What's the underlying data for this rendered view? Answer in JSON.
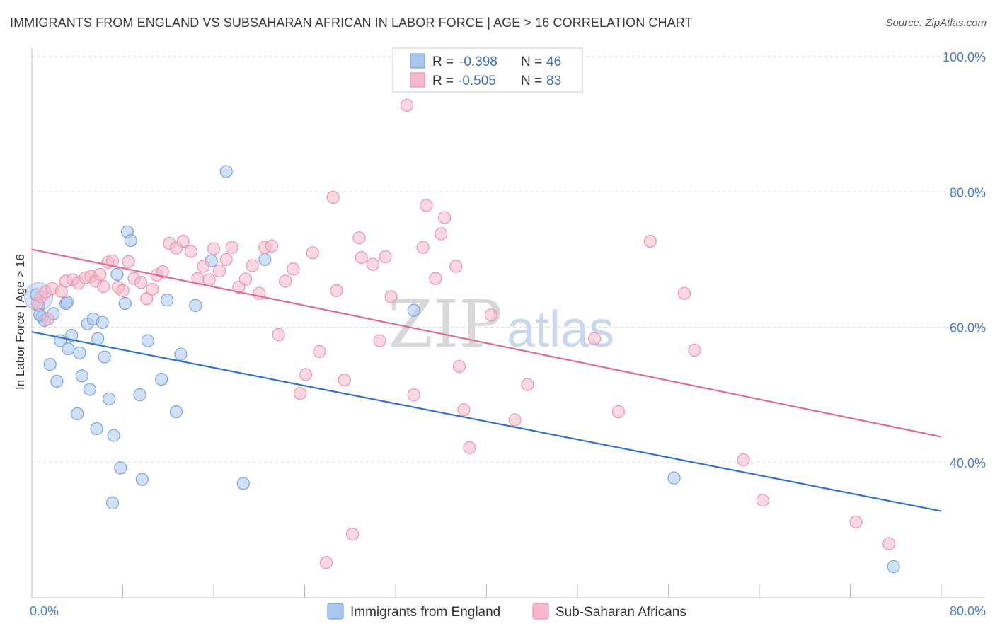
{
  "title": "IMMIGRANTS FROM ENGLAND VS SUBSAHARAN AFRICAN IN LABOR FORCE | AGE > 16 CORRELATION CHART",
  "source": "Source: ZipAtlas.com",
  "watermark": {
    "zip": "ZIP",
    "atlas": "atlas"
  },
  "colors": {
    "blue_fill": "#aac6ee",
    "blue_stroke": "#7aa3dd",
    "blue_line": "#2f74d0",
    "pink_fill": "#f6b8cb",
    "pink_stroke": "#ee93b0",
    "pink_line": "#e06b94",
    "grid": "#d9d9d9",
    "tick_text": "#4a7cc9"
  },
  "legend": {
    "r_label": "R =",
    "n_label": "N =",
    "blue": {
      "r": "-0.398",
      "n": "46"
    },
    "pink": {
      "r": "-0.505",
      "n": "83"
    }
  },
  "chart_data": {
    "type": "scatter",
    "xlabel": "",
    "ylabel": "In Labor Force | Age > 16",
    "xlim": [
      0,
      80
    ],
    "ylim": [
      20,
      100
    ],
    "x_tick_labels": [
      "0.0%",
      "80.0%"
    ],
    "y_ticks": [
      40,
      60,
      80,
      100
    ],
    "y_tick_labels": [
      "40.0%",
      "60.0%",
      "80.0%",
      "100.0%"
    ],
    "legend_position": "top-center",
    "grid": true,
    "series": [
      {
        "name": "Immigrants from England",
        "color": "#aac6ee",
        "trend": {
          "x0": 0,
          "y0": 59.3,
          "x1": 80,
          "y1": 32.8
        },
        "points": [
          [
            0.4,
            64.8
          ],
          [
            0.6,
            63.2
          ],
          [
            0.9,
            61.5
          ],
          [
            1.1,
            61.0
          ],
          [
            1.9,
            62.0
          ],
          [
            1.6,
            54.5
          ],
          [
            2.2,
            52.0
          ],
          [
            2.5,
            58.0
          ],
          [
            3.2,
            56.8
          ],
          [
            3.5,
            58.8
          ],
          [
            3.0,
            63.5
          ],
          [
            3.1,
            63.7
          ],
          [
            4.2,
            56.2
          ],
          [
            4.4,
            52.8
          ],
          [
            5.1,
            50.8
          ],
          [
            4.9,
            60.5
          ],
          [
            5.4,
            61.2
          ],
          [
            5.8,
            58.3
          ],
          [
            6.2,
            60.7
          ],
          [
            6.4,
            55.6
          ],
          [
            6.8,
            49.4
          ],
          [
            4.0,
            47.2
          ],
          [
            5.7,
            45.0
          ],
          [
            7.2,
            44.0
          ],
          [
            7.8,
            39.2
          ],
          [
            7.5,
            67.8
          ],
          [
            8.2,
            63.5
          ],
          [
            8.4,
            74.1
          ],
          [
            8.7,
            72.8
          ],
          [
            9.5,
            50.0
          ],
          [
            9.7,
            37.5
          ],
          [
            10.2,
            58.0
          ],
          [
            11.4,
            52.3
          ],
          [
            11.9,
            64.0
          ],
          [
            12.7,
            47.5
          ],
          [
            13.1,
            56.0
          ],
          [
            14.4,
            63.2
          ],
          [
            15.8,
            69.8
          ],
          [
            17.1,
            83.0
          ],
          [
            18.6,
            36.9
          ],
          [
            20.5,
            70.0
          ],
          [
            7.1,
            34.0
          ],
          [
            33.6,
            62.5
          ],
          [
            56.5,
            37.7
          ],
          [
            75.8,
            24.6
          ],
          [
            0.7,
            61.8
          ]
        ]
      },
      {
        "name": "Sub-Saharan Africans",
        "color": "#f6b8cb",
        "trend": {
          "x0": 0,
          "y0": 71.5,
          "x1": 80,
          "y1": 43.8
        },
        "points": [
          [
            0.5,
            63.5
          ],
          [
            0.8,
            64.5
          ],
          [
            1.2,
            65.2
          ],
          [
            1.8,
            65.7
          ],
          [
            2.6,
            65.3
          ],
          [
            3.0,
            66.8
          ],
          [
            3.6,
            67.0
          ],
          [
            4.1,
            66.5
          ],
          [
            4.7,
            67.3
          ],
          [
            5.2,
            67.5
          ],
          [
            5.6,
            66.8
          ],
          [
            6.0,
            67.8
          ],
          [
            6.3,
            66.0
          ],
          [
            6.7,
            69.6
          ],
          [
            7.1,
            69.8
          ],
          [
            7.6,
            65.9
          ],
          [
            8.0,
            65.4
          ],
          [
            8.5,
            69.7
          ],
          [
            9.0,
            67.2
          ],
          [
            9.6,
            66.6
          ],
          [
            10.1,
            64.2
          ],
          [
            10.6,
            65.6
          ],
          [
            11.0,
            67.7
          ],
          [
            11.5,
            68.2
          ],
          [
            12.1,
            72.4
          ],
          [
            12.7,
            71.7
          ],
          [
            13.3,
            72.7
          ],
          [
            14.0,
            71.2
          ],
          [
            14.6,
            67.2
          ],
          [
            15.1,
            69.0
          ],
          [
            15.6,
            67.0
          ],
          [
            16.0,
            71.6
          ],
          [
            16.5,
            68.3
          ],
          [
            17.1,
            70.0
          ],
          [
            17.6,
            71.8
          ],
          [
            18.2,
            65.9
          ],
          [
            18.8,
            67.1
          ],
          [
            19.4,
            69.1
          ],
          [
            20.0,
            65.0
          ],
          [
            20.5,
            71.8
          ],
          [
            21.1,
            72.0
          ],
          [
            21.7,
            58.9
          ],
          [
            22.3,
            66.8
          ],
          [
            23.0,
            68.6
          ],
          [
            23.6,
            50.2
          ],
          [
            24.1,
            53.0
          ],
          [
            24.7,
            71.0
          ],
          [
            25.3,
            56.4
          ],
          [
            25.9,
            25.2
          ],
          [
            26.5,
            79.2
          ],
          [
            26.8,
            65.4
          ],
          [
            27.5,
            52.2
          ],
          [
            28.2,
            29.4
          ],
          [
            28.8,
            73.2
          ],
          [
            29.0,
            70.3
          ],
          [
            30.0,
            69.3
          ],
          [
            30.6,
            58.0
          ],
          [
            31.1,
            70.4
          ],
          [
            31.6,
            64.5
          ],
          [
            33.0,
            92.8
          ],
          [
            33.6,
            50.0
          ],
          [
            34.4,
            71.8
          ],
          [
            34.7,
            78.0
          ],
          [
            35.5,
            67.2
          ],
          [
            36.0,
            73.8
          ],
          [
            36.3,
            76.2
          ],
          [
            37.3,
            69.0
          ],
          [
            37.6,
            54.2
          ],
          [
            38.0,
            47.8
          ],
          [
            38.5,
            42.2
          ],
          [
            40.4,
            61.8
          ],
          [
            42.5,
            46.3
          ],
          [
            43.6,
            51.5
          ],
          [
            49.5,
            58.3
          ],
          [
            51.6,
            47.5
          ],
          [
            54.4,
            72.7
          ],
          [
            57.4,
            65.0
          ],
          [
            58.3,
            56.6
          ],
          [
            62.6,
            40.4
          ],
          [
            64.3,
            34.4
          ],
          [
            72.5,
            31.2
          ],
          [
            75.4,
            28.0
          ],
          [
            1.4,
            61.2
          ]
        ]
      }
    ]
  }
}
